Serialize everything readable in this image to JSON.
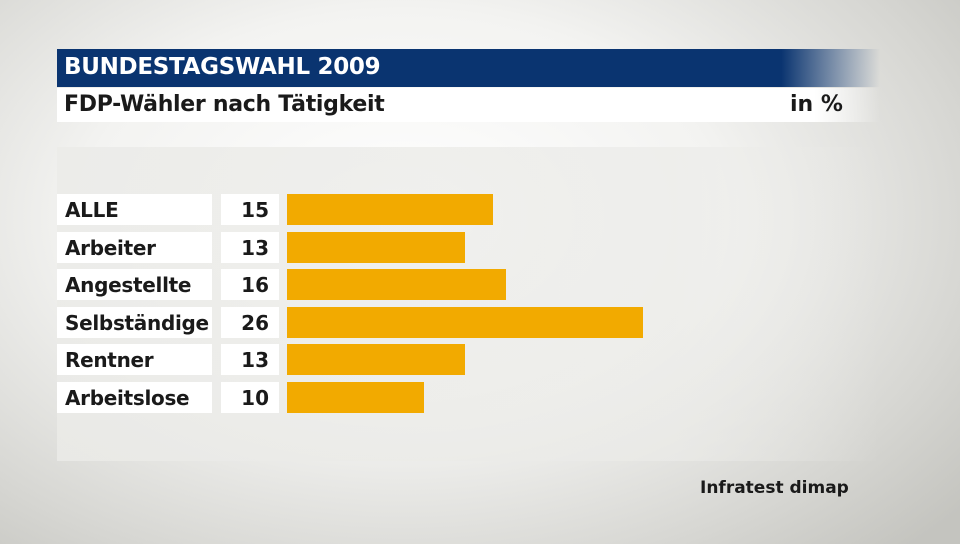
{
  "header": {
    "title": "BUNDESTAGSWAHL 2009",
    "subtitle": "FDP-Wähler nach Tätigkeit",
    "unit": "in %"
  },
  "source": "Infratest dimap",
  "colors": {
    "header_bg": "#0a3470",
    "bar": "#f2aa00"
  },
  "chart_data": {
    "type": "bar",
    "orientation": "horizontal",
    "title": "FDP-Wähler nach Tätigkeit",
    "unit": "in %",
    "categories": [
      "ALLE",
      "Arbeiter",
      "Angestellte",
      "Selbständige",
      "Rentner",
      "Arbeitslose"
    ],
    "values": [
      15,
      13,
      16,
      26,
      13,
      10
    ],
    "xlim": [
      0,
      60
    ],
    "grid": false,
    "legend": "none"
  }
}
